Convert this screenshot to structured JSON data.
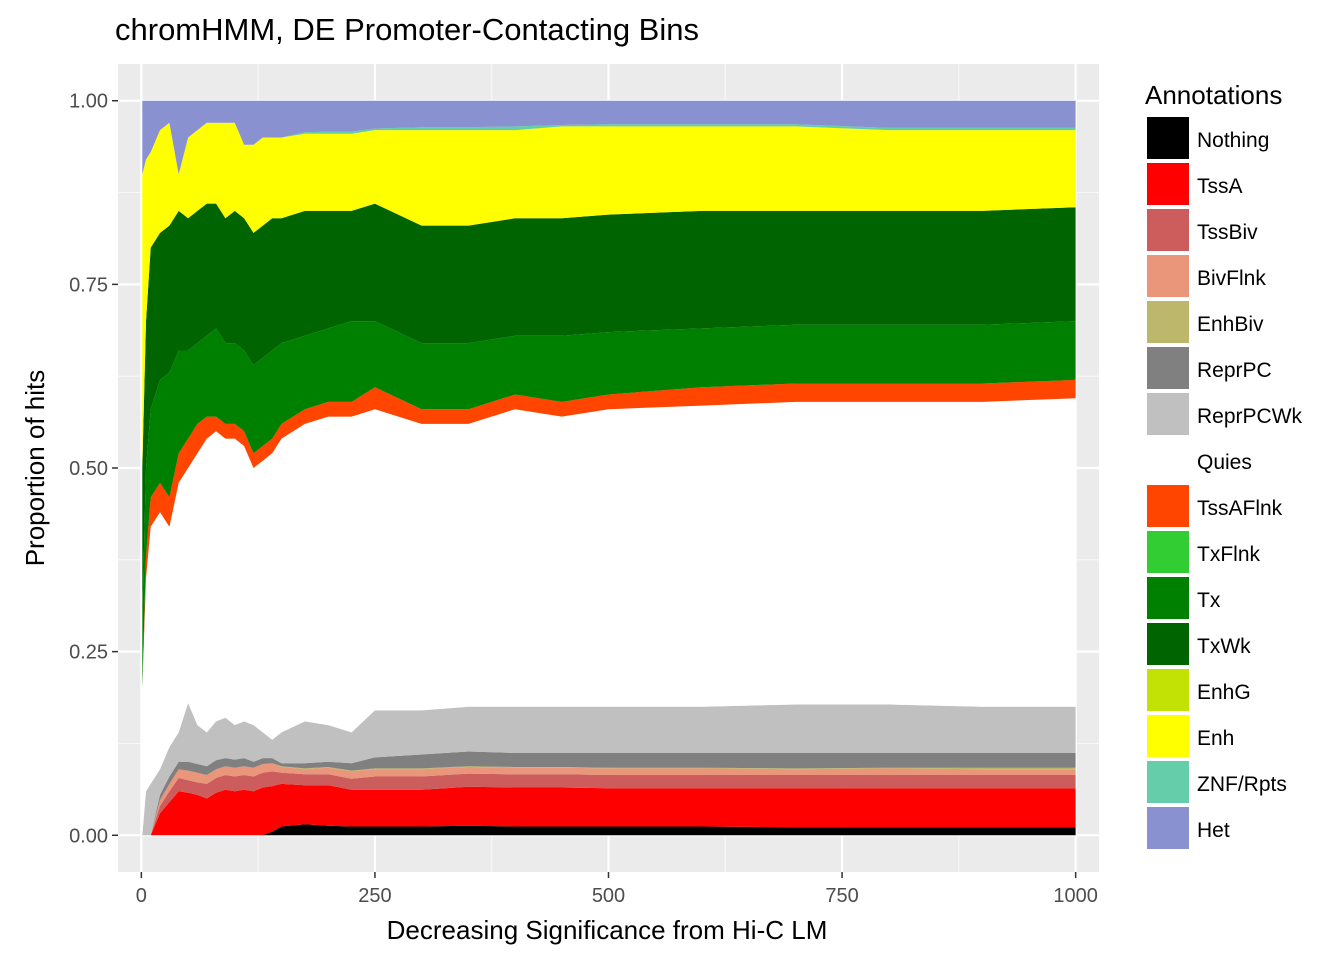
{
  "chart_data": {
    "type": "area",
    "stacked": true,
    "title": "chromHMM, DE Promoter-Contacting Bins",
    "xlabel": "Decreasing Significance from Hi-C LM",
    "ylabel": "Proportion of hits",
    "xlim": [
      -25,
      1025
    ],
    "ylim": [
      -0.05,
      1.05
    ],
    "x_ticks": [
      0,
      250,
      500,
      750,
      1000
    ],
    "x_tick_labels": [
      "0",
      "250",
      "500",
      "750",
      "1000"
    ],
    "y_ticks": [
      0,
      0.25,
      0.5,
      0.75,
      1.0
    ],
    "y_tick_labels": [
      "0.00",
      "0.25",
      "0.50",
      "0.75",
      "1.00"
    ],
    "grid": true,
    "legend": {
      "title": "Annotations",
      "position": "right",
      "entries": [
        {
          "name": "Nothing",
          "color": "#000000"
        },
        {
          "name": "TssA",
          "color": "#FF0000"
        },
        {
          "name": "TssBiv",
          "color": "#CD5C5C"
        },
        {
          "name": "BivFlnk",
          "color": "#E9967A"
        },
        {
          "name": "EnhBiv",
          "color": "#BDB76B"
        },
        {
          "name": "ReprPC",
          "color": "#808080"
        },
        {
          "name": "ReprPCWk",
          "color": "#C0C0C0"
        },
        {
          "name": "Quies",
          "color": "#FFFFFF"
        },
        {
          "name": "TssAFlnk",
          "color": "#FF4500"
        },
        {
          "name": "TxFlnk",
          "color": "#32CD32"
        },
        {
          "name": "Tx",
          "color": "#008000"
        },
        {
          "name": "TxWk",
          "color": "#006400"
        },
        {
          "name": "EnhG",
          "color": "#C2E105"
        },
        {
          "name": "Enh",
          "color": "#FFFF00"
        },
        {
          "name": "ZNF/Rpts",
          "color": "#66CDAA"
        },
        {
          "name": "Het",
          "color": "#8A91D0"
        }
      ]
    },
    "x": [
      1,
      5,
      10,
      20,
      30,
      40,
      50,
      60,
      70,
      80,
      90,
      100,
      110,
      120,
      130,
      140,
      150,
      175,
      200,
      225,
      250,
      300,
      350,
      400,
      450,
      500,
      600,
      700,
      800,
      900,
      1000
    ],
    "cumulative_boundaries": [
      {
        "name": "Nothing",
        "values": [
          0,
          0,
          0,
          0,
          0,
          0,
          0,
          0,
          0,
          0,
          0,
          0,
          0,
          0,
          0,
          0.005,
          0.012,
          0.015,
          0.013,
          0.012,
          0.012,
          0.012,
          0.013,
          0.012,
          0.012,
          0.012,
          0.012,
          0.011,
          0.011,
          0.011,
          0.011
        ]
      },
      {
        "name": "TssA",
        "values": [
          0,
          0,
          0,
          0.03,
          0.045,
          0.06,
          0.058,
          0.055,
          0.05,
          0.058,
          0.062,
          0.06,
          0.062,
          0.06,
          0.065,
          0.067,
          0.07,
          0.068,
          0.068,
          0.062,
          0.062,
          0.062,
          0.066,
          0.065,
          0.065,
          0.064,
          0.064,
          0.064,
          0.064,
          0.064,
          0.064
        ]
      },
      {
        "name": "TssBiv",
        "values": [
          0,
          0,
          0,
          0.04,
          0.06,
          0.078,
          0.075,
          0.072,
          0.07,
          0.078,
          0.082,
          0.08,
          0.082,
          0.08,
          0.085,
          0.087,
          0.085,
          0.083,
          0.083,
          0.077,
          0.08,
          0.08,
          0.084,
          0.083,
          0.083,
          0.082,
          0.082,
          0.082,
          0.082,
          0.082,
          0.082
        ]
      },
      {
        "name": "BivFlnk",
        "values": [
          0,
          0,
          0,
          0.048,
          0.07,
          0.09,
          0.088,
          0.085,
          0.082,
          0.09,
          0.094,
          0.092,
          0.094,
          0.092,
          0.097,
          0.098,
          0.093,
          0.09,
          0.092,
          0.087,
          0.09,
          0.09,
          0.093,
          0.092,
          0.092,
          0.091,
          0.091,
          0.09,
          0.091,
          0.09,
          0.09
        ]
      },
      {
        "name": "EnhBiv",
        "values": [
          0,
          0,
          0,
          0.048,
          0.07,
          0.09,
          0.088,
          0.085,
          0.082,
          0.09,
          0.094,
          0.092,
          0.094,
          0.092,
          0.097,
          0.098,
          0.094,
          0.091,
          0.093,
          0.088,
          0.091,
          0.091,
          0.094,
          0.093,
          0.093,
          0.092,
          0.092,
          0.091,
          0.092,
          0.092,
          0.092
        ]
      },
      {
        "name": "ReprPC",
        "values": [
          0,
          0,
          0,
          0.055,
          0.08,
          0.1,
          0.1,
          0.097,
          0.094,
          0.102,
          0.105,
          0.103,
          0.105,
          0.1,
          0.105,
          0.105,
          0.098,
          0.098,
          0.1,
          0.098,
          0.106,
          0.11,
          0.114,
          0.112,
          0.112,
          0.112,
          0.112,
          0.112,
          0.112,
          0.112,
          0.112
        ]
      },
      {
        "name": "ReprPCWk",
        "values": [
          0,
          0.06,
          0.07,
          0.09,
          0.12,
          0.14,
          0.18,
          0.15,
          0.14,
          0.155,
          0.16,
          0.15,
          0.155,
          0.15,
          0.14,
          0.13,
          0.14,
          0.155,
          0.15,
          0.14,
          0.17,
          0.17,
          0.175,
          0.175,
          0.175,
          0.175,
          0.175,
          0.178,
          0.178,
          0.175,
          0.175
        ]
      },
      {
        "name": "Quies",
        "values": [
          0.2,
          0.35,
          0.42,
          0.44,
          0.42,
          0.48,
          0.5,
          0.52,
          0.54,
          0.55,
          0.54,
          0.54,
          0.53,
          0.5,
          0.51,
          0.52,
          0.54,
          0.56,
          0.57,
          0.57,
          0.58,
          0.56,
          0.56,
          0.58,
          0.57,
          0.58,
          0.585,
          0.59,
          0.59,
          0.59,
          0.595
        ]
      },
      {
        "name": "TssAFlnk",
        "values": [
          0.2,
          0.38,
          0.46,
          0.48,
          0.46,
          0.52,
          0.54,
          0.56,
          0.57,
          0.57,
          0.56,
          0.56,
          0.55,
          0.52,
          0.53,
          0.54,
          0.56,
          0.58,
          0.59,
          0.59,
          0.61,
          0.58,
          0.58,
          0.6,
          0.59,
          0.6,
          0.61,
          0.615,
          0.615,
          0.615,
          0.62
        ]
      },
      {
        "name": "TxFlnk",
        "values": [
          0.2,
          0.38,
          0.46,
          0.48,
          0.46,
          0.52,
          0.54,
          0.56,
          0.57,
          0.57,
          0.56,
          0.56,
          0.55,
          0.52,
          0.53,
          0.54,
          0.56,
          0.58,
          0.59,
          0.59,
          0.61,
          0.58,
          0.58,
          0.6,
          0.59,
          0.6,
          0.61,
          0.615,
          0.615,
          0.615,
          0.62
        ]
      },
      {
        "name": "Tx",
        "values": [
          0.3,
          0.5,
          0.58,
          0.62,
          0.63,
          0.66,
          0.66,
          0.67,
          0.68,
          0.69,
          0.67,
          0.67,
          0.66,
          0.64,
          0.65,
          0.66,
          0.67,
          0.68,
          0.69,
          0.7,
          0.7,
          0.67,
          0.67,
          0.68,
          0.68,
          0.685,
          0.69,
          0.695,
          0.695,
          0.695,
          0.7
        ]
      },
      {
        "name": "TxWk",
        "values": [
          0.5,
          0.7,
          0.8,
          0.82,
          0.83,
          0.85,
          0.84,
          0.85,
          0.86,
          0.86,
          0.84,
          0.85,
          0.84,
          0.82,
          0.83,
          0.84,
          0.84,
          0.85,
          0.85,
          0.85,
          0.86,
          0.83,
          0.83,
          0.84,
          0.84,
          0.845,
          0.85,
          0.85,
          0.85,
          0.85,
          0.855
        ]
      },
      {
        "name": "EnhG",
        "values": [
          0.5,
          0.7,
          0.8,
          0.82,
          0.83,
          0.85,
          0.84,
          0.85,
          0.86,
          0.86,
          0.84,
          0.85,
          0.84,
          0.82,
          0.83,
          0.84,
          0.84,
          0.85,
          0.85,
          0.85,
          0.86,
          0.83,
          0.83,
          0.84,
          0.84,
          0.845,
          0.85,
          0.85,
          0.85,
          0.85,
          0.855
        ]
      },
      {
        "name": "Enh",
        "values": [
          0.9,
          0.92,
          0.93,
          0.96,
          0.97,
          0.9,
          0.95,
          0.96,
          0.97,
          0.97,
          0.97,
          0.97,
          0.94,
          0.94,
          0.95,
          0.95,
          0.95,
          0.955,
          0.955,
          0.955,
          0.96,
          0.96,
          0.96,
          0.96,
          0.965,
          0.965,
          0.965,
          0.965,
          0.96,
          0.96,
          0.96
        ]
      },
      {
        "name": "ZNF/Rpts",
        "values": [
          0.9,
          0.92,
          0.93,
          0.96,
          0.97,
          0.9,
          0.95,
          0.96,
          0.97,
          0.97,
          0.97,
          0.97,
          0.94,
          0.94,
          0.95,
          0.95,
          0.95,
          0.957,
          0.958,
          0.958,
          0.962,
          0.964,
          0.964,
          0.965,
          0.967,
          0.968,
          0.968,
          0.968,
          0.963,
          0.963,
          0.963
        ]
      },
      {
        "name": "Het",
        "values": [
          1,
          1,
          1,
          1,
          1,
          1,
          1,
          1,
          1,
          1,
          1,
          1,
          1,
          1,
          1,
          1,
          1,
          1,
          1,
          1,
          1,
          1,
          1,
          1,
          1,
          1,
          1,
          1,
          1,
          1,
          1
        ]
      }
    ]
  }
}
